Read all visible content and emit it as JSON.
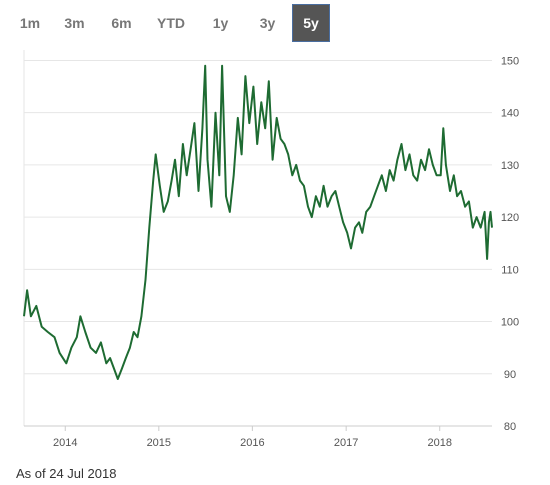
{
  "range_tabs": [
    "1m",
    "3m",
    "6m",
    "YTD",
    "1y",
    "3y",
    "5y"
  ],
  "active_tab": "5y",
  "as_of_text": "As of 24 Jul 2018",
  "colors": {
    "line": "#1e6b32",
    "active_tab_bg": "#555555",
    "grid": "#e6e6e6"
  },
  "chart_data": {
    "type": "line",
    "title": "",
    "xlabel": "",
    "ylabel": "",
    "ylim": [
      80,
      152
    ],
    "xlim": [
      "2013-07-24",
      "2018-07-24"
    ],
    "y_ticks": [
      80,
      90,
      100,
      110,
      120,
      130,
      140,
      150
    ],
    "x_ticks": [
      "2014",
      "2015",
      "2016",
      "2017",
      "2018"
    ],
    "grid": true,
    "series": [
      {
        "name": "",
        "points": [
          [
            "2013-07-24",
            101
          ],
          [
            "2013-08-05",
            106
          ],
          [
            "2013-08-20",
            101
          ],
          [
            "2013-09-10",
            103
          ],
          [
            "2013-10-01",
            99
          ],
          [
            "2013-10-25",
            98
          ],
          [
            "2013-11-20",
            97
          ],
          [
            "2013-12-10",
            94
          ],
          [
            "2014-01-05",
            92
          ],
          [
            "2014-01-25",
            95
          ],
          [
            "2014-02-15",
            97
          ],
          [
            "2014-03-01",
            101
          ],
          [
            "2014-03-20",
            98
          ],
          [
            "2014-04-10",
            95
          ],
          [
            "2014-05-01",
            94
          ],
          [
            "2014-05-20",
            96
          ],
          [
            "2014-06-10",
            92
          ],
          [
            "2014-06-25",
            93
          ],
          [
            "2014-07-10",
            91
          ],
          [
            "2014-07-25",
            89
          ],
          [
            "2014-08-10",
            91
          ],
          [
            "2014-08-25",
            93
          ],
          [
            "2014-09-10",
            95
          ],
          [
            "2014-09-25",
            98
          ],
          [
            "2014-10-10",
            97
          ],
          [
            "2014-10-25",
            101
          ],
          [
            "2014-11-10",
            108
          ],
          [
            "2014-11-25",
            118
          ],
          [
            "2014-12-10",
            127
          ],
          [
            "2014-12-20",
            132
          ],
          [
            "2015-01-05",
            126
          ],
          [
            "2015-01-20",
            121
          ],
          [
            "2015-02-05",
            123
          ],
          [
            "2015-02-20",
            127
          ],
          [
            "2015-03-05",
            131
          ],
          [
            "2015-03-20",
            124
          ],
          [
            "2015-04-05",
            134
          ],
          [
            "2015-04-20",
            128
          ],
          [
            "2015-05-05",
            133
          ],
          [
            "2015-05-20",
            138
          ],
          [
            "2015-06-05",
            125
          ],
          [
            "2015-06-20",
            137
          ],
          [
            "2015-07-01",
            149
          ],
          [
            "2015-07-10",
            131
          ],
          [
            "2015-07-25",
            122
          ],
          [
            "2015-08-10",
            140
          ],
          [
            "2015-08-25",
            128
          ],
          [
            "2015-09-05",
            149
          ],
          [
            "2015-09-20",
            124
          ],
          [
            "2015-10-05",
            121
          ],
          [
            "2015-10-20",
            128
          ],
          [
            "2015-11-05",
            139
          ],
          [
            "2015-11-20",
            132
          ],
          [
            "2015-12-05",
            147
          ],
          [
            "2015-12-20",
            138
          ],
          [
            "2016-01-05",
            145
          ],
          [
            "2016-01-20",
            134
          ],
          [
            "2016-02-05",
            142
          ],
          [
            "2016-02-20",
            137
          ],
          [
            "2016-03-05",
            146
          ],
          [
            "2016-03-20",
            131
          ],
          [
            "2016-04-05",
            139
          ],
          [
            "2016-04-20",
            135
          ],
          [
            "2016-05-05",
            134
          ],
          [
            "2016-05-20",
            132
          ],
          [
            "2016-06-05",
            128
          ],
          [
            "2016-06-20",
            130
          ],
          [
            "2016-07-05",
            127
          ],
          [
            "2016-07-20",
            126
          ],
          [
            "2016-08-05",
            122
          ],
          [
            "2016-08-20",
            120
          ],
          [
            "2016-09-05",
            124
          ],
          [
            "2016-09-20",
            122
          ],
          [
            "2016-10-05",
            126
          ],
          [
            "2016-10-20",
            122
          ],
          [
            "2016-11-05",
            124
          ],
          [
            "2016-11-20",
            125
          ],
          [
            "2016-12-05",
            122
          ],
          [
            "2016-12-20",
            119
          ],
          [
            "2017-01-05",
            117
          ],
          [
            "2017-01-20",
            114
          ],
          [
            "2017-02-05",
            118
          ],
          [
            "2017-02-20",
            119
          ],
          [
            "2017-03-05",
            117
          ],
          [
            "2017-03-20",
            121
          ],
          [
            "2017-04-05",
            122
          ],
          [
            "2017-04-20",
            124
          ],
          [
            "2017-05-05",
            126
          ],
          [
            "2017-05-20",
            128
          ],
          [
            "2017-06-05",
            125
          ],
          [
            "2017-06-20",
            129
          ],
          [
            "2017-07-05",
            127
          ],
          [
            "2017-07-20",
            131
          ],
          [
            "2017-08-05",
            134
          ],
          [
            "2017-08-20",
            129
          ],
          [
            "2017-09-05",
            132
          ],
          [
            "2017-09-20",
            128
          ],
          [
            "2017-10-05",
            127
          ],
          [
            "2017-10-20",
            131
          ],
          [
            "2017-11-05",
            129
          ],
          [
            "2017-11-20",
            133
          ],
          [
            "2017-12-05",
            130
          ],
          [
            "2017-12-20",
            128
          ],
          [
            "2018-01-05",
            128
          ],
          [
            "2018-01-15",
            137
          ],
          [
            "2018-01-25",
            130
          ],
          [
            "2018-02-10",
            125
          ],
          [
            "2018-02-25",
            128
          ],
          [
            "2018-03-10",
            124
          ],
          [
            "2018-03-25",
            125
          ],
          [
            "2018-04-10",
            122
          ],
          [
            "2018-04-25",
            123
          ],
          [
            "2018-05-10",
            118
          ],
          [
            "2018-05-25",
            120
          ],
          [
            "2018-06-10",
            118
          ],
          [
            "2018-06-25",
            121
          ],
          [
            "2018-07-05",
            112
          ],
          [
            "2018-07-12",
            119
          ],
          [
            "2018-07-18",
            121
          ],
          [
            "2018-07-24",
            118
          ]
        ]
      }
    ]
  }
}
